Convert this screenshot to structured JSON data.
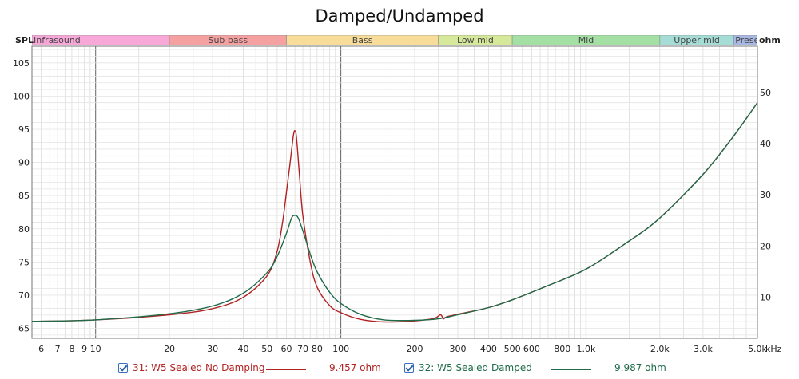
{
  "chart_data": {
    "type": "line",
    "title": "Damped/Undamped",
    "left_axis_label": "SPL",
    "right_axis_label": "ohm",
    "x_unit": "kHz",
    "x_scale": "log",
    "xlim": [
      5.5,
      5000
    ],
    "left_ylim": [
      63.5,
      107.5
    ],
    "right_ylim": [
      2,
      59
    ],
    "grid": true,
    "x_ticks": [
      6,
      7,
      8,
      9,
      10,
      20,
      30,
      40,
      50,
      60,
      70,
      80,
      100,
      200,
      300,
      400,
      500,
      600,
      800,
      1000,
      2000,
      3000,
      5000
    ],
    "x_tick_labels": [
      "6",
      "7",
      "8",
      "9",
      "10",
      "20",
      "30",
      "40",
      "50",
      "60",
      "70",
      "80",
      "100",
      "200",
      "300",
      "400",
      "500",
      "600",
      "800",
      "1.0k",
      "2.0k",
      "3.0k",
      "5.0k"
    ],
    "left_ticks": [
      65,
      70,
      75,
      80,
      85,
      90,
      95,
      100,
      105
    ],
    "right_ticks": [
      10,
      20,
      30,
      40,
      50
    ],
    "bands": [
      {
        "label": "Infrasound",
        "from": 5.5,
        "to": 20,
        "color": "#f8a8d8"
      },
      {
        "label": "Sub bass",
        "from": 20,
        "to": 60,
        "color": "#f5a1a1"
      },
      {
        "label": "Bass",
        "from": 60,
        "to": 250,
        "color": "#f8dc9a"
      },
      {
        "label": "Low mid",
        "from": 250,
        "to": 500,
        "color": "#d6e89a"
      },
      {
        "label": "Mid",
        "from": 500,
        "to": 2000,
        "color": "#a4dfa4"
      },
      {
        "label": "Upper mid",
        "from": 2000,
        "to": 4000,
        "color": "#a6dcd6"
      },
      {
        "label": "Presence",
        "from": 4000,
        "to": 5000,
        "color": "#a8b8e4"
      }
    ],
    "series": [
      {
        "name": "31: W5 Sealed No Damping",
        "value_label": "9.457 ohm",
        "color": "#b22222",
        "axis": "right",
        "points": [
          [
            5.5,
            5.3
          ],
          [
            10,
            5.6
          ],
          [
            20,
            6.6
          ],
          [
            30,
            7.8
          ],
          [
            40,
            10
          ],
          [
            50,
            14.2
          ],
          [
            55,
            19
          ],
          [
            58,
            25
          ],
          [
            60,
            30.5
          ],
          [
            62,
            36
          ],
          [
            64,
            41.5
          ],
          [
            65,
            42.5
          ],
          [
            66,
            41
          ],
          [
            68,
            33
          ],
          [
            70,
            26
          ],
          [
            75,
            17
          ],
          [
            80,
            12
          ],
          [
            90,
            8.4
          ],
          [
            100,
            7
          ],
          [
            120,
            5.7
          ],
          [
            150,
            5.2
          ],
          [
            200,
            5.4
          ],
          [
            240,
            5.9
          ],
          [
            255,
            6.6
          ],
          [
            262,
            5.8
          ],
          [
            270,
            6.2
          ],
          [
            300,
            6.7
          ],
          [
            400,
            8
          ],
          [
            500,
            9.5
          ],
          [
            700,
            12.3
          ],
          [
            1000,
            15.5
          ],
          [
            1500,
            21
          ],
          [
            2000,
            25.5
          ],
          [
            3000,
            34
          ],
          [
            4000,
            41.5
          ],
          [
            5000,
            48
          ]
        ]
      },
      {
        "name": "32: W5 Sealed Damped",
        "value_label": "9.987 ohm",
        "color": "#1f6b4a",
        "axis": "right",
        "points": [
          [
            5.5,
            5.3
          ],
          [
            10,
            5.6
          ],
          [
            20,
            6.8
          ],
          [
            30,
            8.3
          ],
          [
            40,
            10.8
          ],
          [
            50,
            14.8
          ],
          [
            55,
            18
          ],
          [
            60,
            22.5
          ],
          [
            63,
            25.5
          ],
          [
            65,
            26
          ],
          [
            67,
            25.5
          ],
          [
            70,
            23
          ],
          [
            75,
            18.5
          ],
          [
            80,
            15
          ],
          [
            90,
            11
          ],
          [
            100,
            8.8
          ],
          [
            120,
            6.7
          ],
          [
            150,
            5.6
          ],
          [
            200,
            5.5
          ],
          [
            250,
            5.8
          ],
          [
            300,
            6.6
          ],
          [
            400,
            8
          ],
          [
            500,
            9.5
          ],
          [
            700,
            12.3
          ],
          [
            1000,
            15.5
          ],
          [
            1500,
            21
          ],
          [
            2000,
            25.5
          ],
          [
            3000,
            34
          ],
          [
            4000,
            41.5
          ],
          [
            5000,
            48
          ]
        ]
      }
    ]
  }
}
